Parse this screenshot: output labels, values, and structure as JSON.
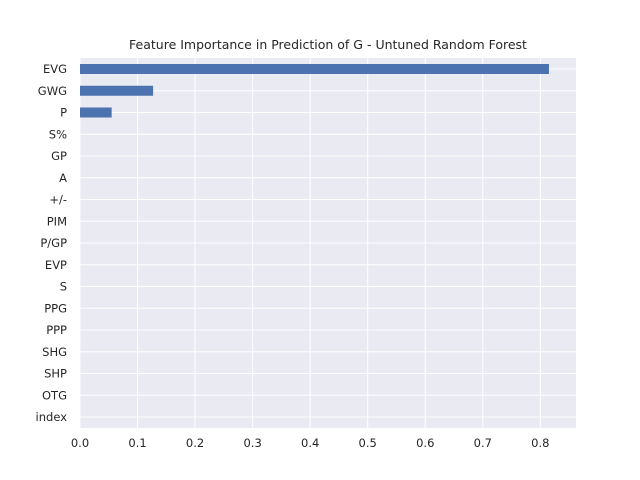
{
  "chart_data": {
    "type": "bar",
    "orientation": "horizontal",
    "title": "Feature Importance in Prediction of G - Untuned Random Forest",
    "xlabel": "",
    "ylabel": "",
    "categories": [
      "EVG",
      "GWG",
      "P",
      "S%",
      "GP",
      "A",
      "+/-",
      "PIM",
      "P/GP",
      "EVP",
      "S",
      "PPG",
      "PPP",
      "SHG",
      "SHP",
      "OTG",
      "index"
    ],
    "values": [
      0.815,
      0.127,
      0.055,
      0.0,
      0.0,
      0.0,
      0.0,
      0.0,
      0.0,
      0.0,
      0.0,
      0.0,
      0.0,
      0.0,
      0.0,
      0.0,
      0.0
    ],
    "xlim": [
      0,
      0.862
    ],
    "xticks": [
      "0.0",
      "0.1",
      "0.2",
      "0.3",
      "0.4",
      "0.5",
      "0.6",
      "0.7",
      "0.8"
    ],
    "grid": true,
    "legend": "none",
    "colors": {
      "bar": "#4c72b0",
      "background": "#eaeaf2",
      "grid": "#ffffff",
      "text": "#262626"
    }
  }
}
